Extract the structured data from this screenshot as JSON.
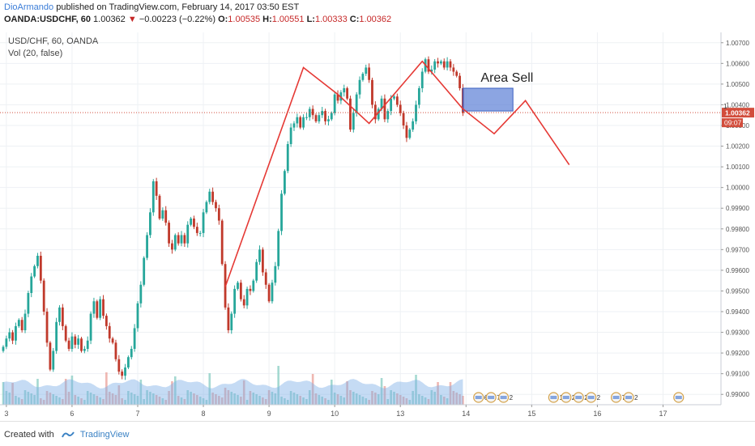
{
  "header": {
    "author": "DioArmando",
    "published": "published on TradingView.com, February 14, 2017 03:50 EST",
    "symbol": "OANDA:USDCHF, 60",
    "last": "1.00362",
    "change": "−0.00223 (−0.22%)",
    "o_label": "O:",
    "o_value": "1.00535",
    "h_label": "H:",
    "h_value": "1.00551",
    "l_label": "L:",
    "l_value": "1.00333",
    "c_label": "C:",
    "c_value": "1.00362"
  },
  "legend": {
    "title": "USD/CHF, 60, OANDA",
    "volume": "Vol (20, false)"
  },
  "footer": {
    "created_with": "Created with",
    "brand": "TradingView"
  },
  "colors": {
    "up": "#26a69a",
    "down": "#c0392b",
    "drawing": "#e53935",
    "zone": "#5b7fd6",
    "price_label": "#d24d3c"
  },
  "chart_data": {
    "type": "candlestick",
    "ylim": [
      0.9895,
      1.0075
    ],
    "y_ticks": [
      "1.00700",
      "1.00600",
      "1.00500",
      "1.00400",
      "1.00300",
      "1.00200",
      "1.00100",
      "1.00000",
      "0.99900",
      "0.99800",
      "0.99700",
      "0.99600",
      "0.99500",
      "0.99400",
      "0.99300",
      "0.99200",
      "0.99100",
      "0.99000"
    ],
    "x_ticks": [
      {
        "label": "3",
        "index": 1
      },
      {
        "label": "6",
        "index": 22
      },
      {
        "label": "7",
        "index": 43
      },
      {
        "label": "8",
        "index": 64
      },
      {
        "label": "9",
        "index": 85
      },
      {
        "label": "10",
        "index": 106
      },
      {
        "label": "13",
        "index": 127
      },
      {
        "label": "14",
        "index": 148
      },
      {
        "label": "15",
        "index": 169
      },
      {
        "label": "16",
        "index": 190
      },
      {
        "label": "17",
        "index": 211
      }
    ],
    "last_price": "1.00362",
    "countdown": "09:07",
    "partial_price_label": "1",
    "closes": [
      0.9923,
      0.9927,
      0.993,
      0.9926,
      0.9933,
      0.9936,
      0.9931,
      0.9939,
      0.9949,
      0.9957,
      0.9962,
      0.9967,
      0.9955,
      0.994,
      0.9925,
      0.9912,
      0.9921,
      0.9935,
      0.9942,
      0.9933,
      0.9926,
      0.9922,
      0.9928,
      0.9924,
      0.9927,
      0.9921,
      0.9922,
      0.9926,
      0.9939,
      0.9945,
      0.9937,
      0.9946,
      0.9938,
      0.9933,
      0.9927,
      0.9925,
      0.9917,
      0.9911,
      0.9909,
      0.9913,
      0.9918,
      0.9922,
      0.9932,
      0.9944,
      0.9953,
      0.9966,
      0.9977,
      0.9988,
      1.0003,
      0.9996,
      0.9985,
      0.9989,
      0.9983,
      0.9973,
      0.997,
      0.9977,
      0.9973,
      0.9977,
      0.9973,
      0.9982,
      0.9985,
      0.9981,
      0.9978,
      0.9978,
      0.9988,
      0.9993,
      0.9998,
      0.9993,
      0.999,
      0.9984,
      0.9963,
      0.9942,
      0.9931,
      0.9939,
      0.9951,
      0.9954,
      0.9946,
      0.9943,
      0.9951,
      0.995,
      0.9955,
      0.9964,
      0.997,
      0.9959,
      0.9953,
      0.9945,
      0.9954,
      0.9962,
      0.9979,
      0.9997,
      1.0008,
      1.0021,
      1.0029,
      1.0031,
      1.0034,
      1.0029,
      1.0034,
      1.0034,
      1.0038,
      1.0035,
      1.0032,
      1.0035,
      1.0037,
      1.0032,
      1.0033,
      1.0036,
      1.0045,
      1.0042,
      1.0046,
      1.0048,
      1.0043,
      1.0028,
      1.0036,
      1.0045,
      1.0052,
      1.0055,
      1.0058,
      1.0052,
      1.004,
      1.0033,
      1.0038,
      1.0043,
      1.0033,
      1.0037,
      1.0043,
      1.0044,
      1.004,
      1.0036,
      1.003,
      1.0024,
      1.0028,
      1.0032,
      1.004,
      1.0048,
      1.0056,
      1.0062,
      1.0056,
      1.0057,
      1.0061,
      1.006,
      1.0061,
      1.0058,
      1.0061,
      1.0058,
      1.0056,
      1.0054,
      1.0048,
      1.0036
    ],
    "drawings": {
      "zigzag_1": [
        [
          71,
          0.9952
        ],
        [
          96,
          1.0058
        ],
        [
          107,
          1.0045
        ],
        [
          117,
          1.0031
        ],
        [
          134,
          1.0061
        ],
        [
          147,
          1.0038
        ]
      ],
      "projection": [
        [
          147,
          1.0038
        ],
        [
          157,
          1.0026
        ],
        [
          167,
          1.0042
        ],
        [
          181,
          1.0011
        ]
      ],
      "sell_zone": {
        "label": "Area Sell",
        "x_start_index": 147,
        "x_end_index": 163,
        "y_low": 1.0037,
        "y_high": 1.0048
      }
    },
    "event_markers": [
      {
        "index": 152,
        "text": "6"
      },
      {
        "index": 156,
        "text": "7"
      },
      {
        "index": 160,
        "text": "2"
      },
      {
        "index": 176,
        "text": "13"
      },
      {
        "index": 180,
        "text": "2"
      },
      {
        "index": 184,
        "text": "2"
      },
      {
        "index": 188,
        "text": "2"
      },
      {
        "index": 196,
        "text": "7"
      },
      {
        "index": 200,
        "text": "2"
      },
      {
        "index": 216,
        "text": ""
      }
    ]
  }
}
